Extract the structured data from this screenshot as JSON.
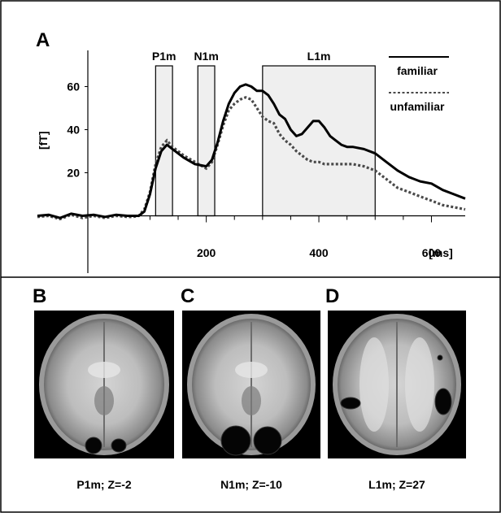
{
  "panel_letters": {
    "a": "A",
    "b": "B",
    "c": "C",
    "d": "D"
  },
  "chart_data": {
    "type": "line",
    "ylabel": "[fT]",
    "xlabel": "[ms]",
    "xlim": [
      -100,
      660
    ],
    "ylim": [
      -10,
      70
    ],
    "x_ticks": [
      200,
      400,
      600
    ],
    "y_ticks": [
      20,
      40,
      60
    ],
    "grid": false,
    "legend_position": "top-right",
    "windows": [
      {
        "label": "P1m",
        "start": 110,
        "end": 140
      },
      {
        "label": "N1m",
        "start": 185,
        "end": 215
      },
      {
        "label": "L1m",
        "start": 300,
        "end": 500
      }
    ],
    "series": [
      {
        "name": "familiar",
        "style": "solid",
        "color": "#000000",
        "x": [
          -100,
          -80,
          -60,
          -40,
          -20,
          0,
          20,
          40,
          60,
          70,
          80,
          90,
          100,
          110,
          120,
          130,
          140,
          160,
          180,
          200,
          210,
          220,
          230,
          240,
          250,
          260,
          270,
          280,
          290,
          300,
          310,
          320,
          330,
          340,
          350,
          360,
          370,
          380,
          390,
          400,
          410,
          420,
          430,
          440,
          450,
          460,
          480,
          500,
          520,
          540,
          560,
          580,
          600,
          620,
          640,
          660
        ],
        "y": [
          0,
          0.5,
          -1,
          1,
          0,
          0.5,
          -0.5,
          0.5,
          0,
          0,
          0,
          2,
          10,
          22,
          30,
          33,
          31,
          27,
          24,
          23,
          26,
          34,
          44,
          52,
          57,
          60,
          61,
          60,
          58,
          58,
          56,
          52,
          47,
          45,
          40,
          37,
          38,
          41,
          44,
          44,
          41,
          37,
          35,
          33,
          32,
          32,
          31,
          29,
          25,
          21,
          18,
          16,
          15,
          12,
          10,
          8
        ]
      },
      {
        "name": "unfamiliar",
        "style": "dotted",
        "color": "#000000",
        "x": [
          -100,
          -80,
          -60,
          -40,
          -20,
          0,
          20,
          40,
          60,
          70,
          80,
          90,
          100,
          110,
          120,
          130,
          140,
          160,
          180,
          200,
          210,
          220,
          230,
          240,
          250,
          260,
          270,
          280,
          290,
          300,
          310,
          320,
          330,
          340,
          350,
          360,
          370,
          380,
          390,
          400,
          410,
          420,
          430,
          440,
          450,
          460,
          480,
          500,
          520,
          540,
          560,
          580,
          600,
          620,
          640,
          660
        ],
        "y": [
          -0.5,
          0,
          -1.5,
          0.5,
          -1,
          0,
          -1,
          0,
          -0.5,
          -0.5,
          0,
          3,
          11,
          24,
          32,
          35,
          32,
          28,
          25,
          22,
          25,
          33,
          42,
          49,
          52,
          54,
          55,
          54,
          50,
          46,
          44,
          43,
          38,
          35,
          33,
          30,
          28,
          26,
          25,
          25,
          24,
          24,
          24,
          24,
          24,
          24,
          23,
          21,
          17,
          13,
          11,
          9,
          7,
          5,
          4,
          3
        ]
      }
    ]
  },
  "brain_panels": [
    {
      "letter_key": "b",
      "caption": "P1m; Z=-2"
    },
    {
      "letter_key": "c",
      "caption": "N1m; Z=-10"
    },
    {
      "letter_key": "d",
      "caption": "L1m; Z=27"
    }
  ]
}
